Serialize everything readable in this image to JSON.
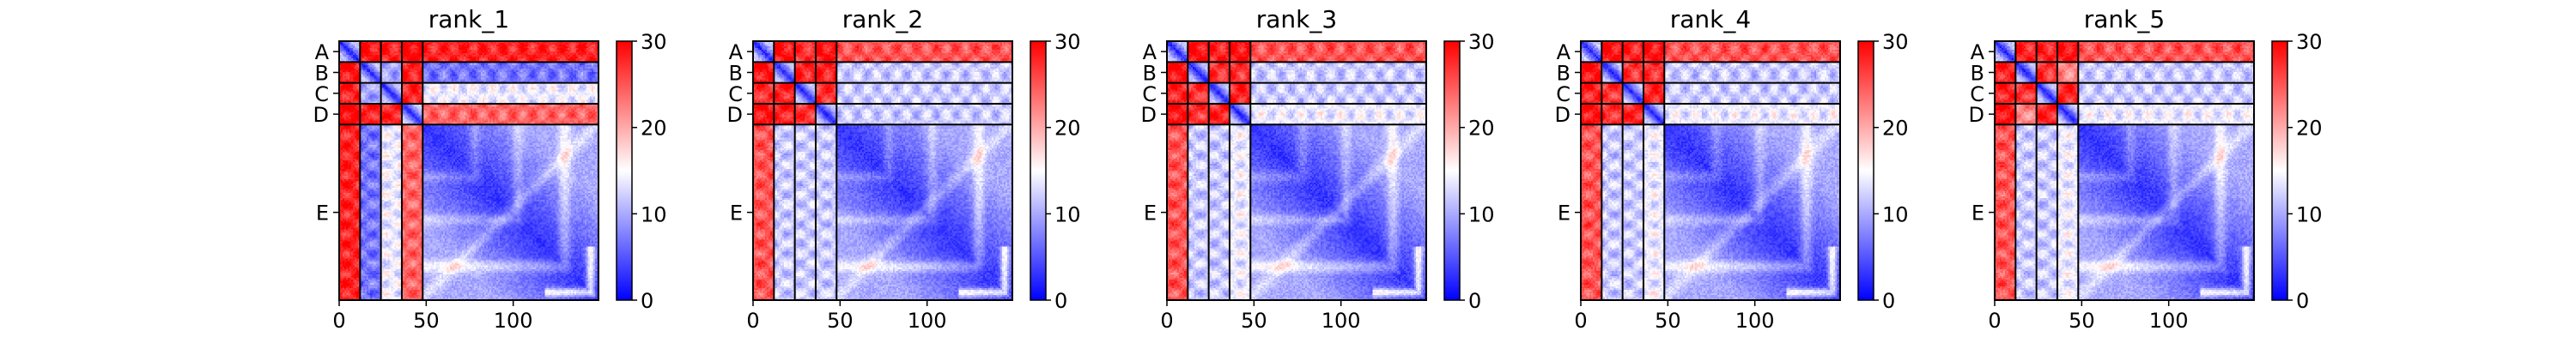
{
  "chart_data": {
    "type": "heatmap",
    "colormap": [
      "#0000ff",
      "#ffffff",
      "#ff0000"
    ],
    "colorbar": {
      "range": [
        0,
        30
      ],
      "ticks": [
        0,
        10,
        20,
        30
      ]
    },
    "x_ticks": [
      0,
      50,
      100
    ],
    "x_range": [
      0,
      149
    ],
    "chains": [
      {
        "label": "A",
        "start": 0,
        "end": 12
      },
      {
        "label": "B",
        "start": 12,
        "end": 24
      },
      {
        "label": "C",
        "start": 24,
        "end": 36
      },
      {
        "label": "D",
        "start": 36,
        "end": 48
      },
      {
        "label": "E",
        "start": 48,
        "end": 149
      }
    ],
    "panels": [
      {
        "title": "rank_1"
      },
      {
        "title": "rank_2"
      },
      {
        "title": "rank_3"
      },
      {
        "title": "rank_4"
      },
      {
        "title": "rank_5"
      }
    ]
  }
}
